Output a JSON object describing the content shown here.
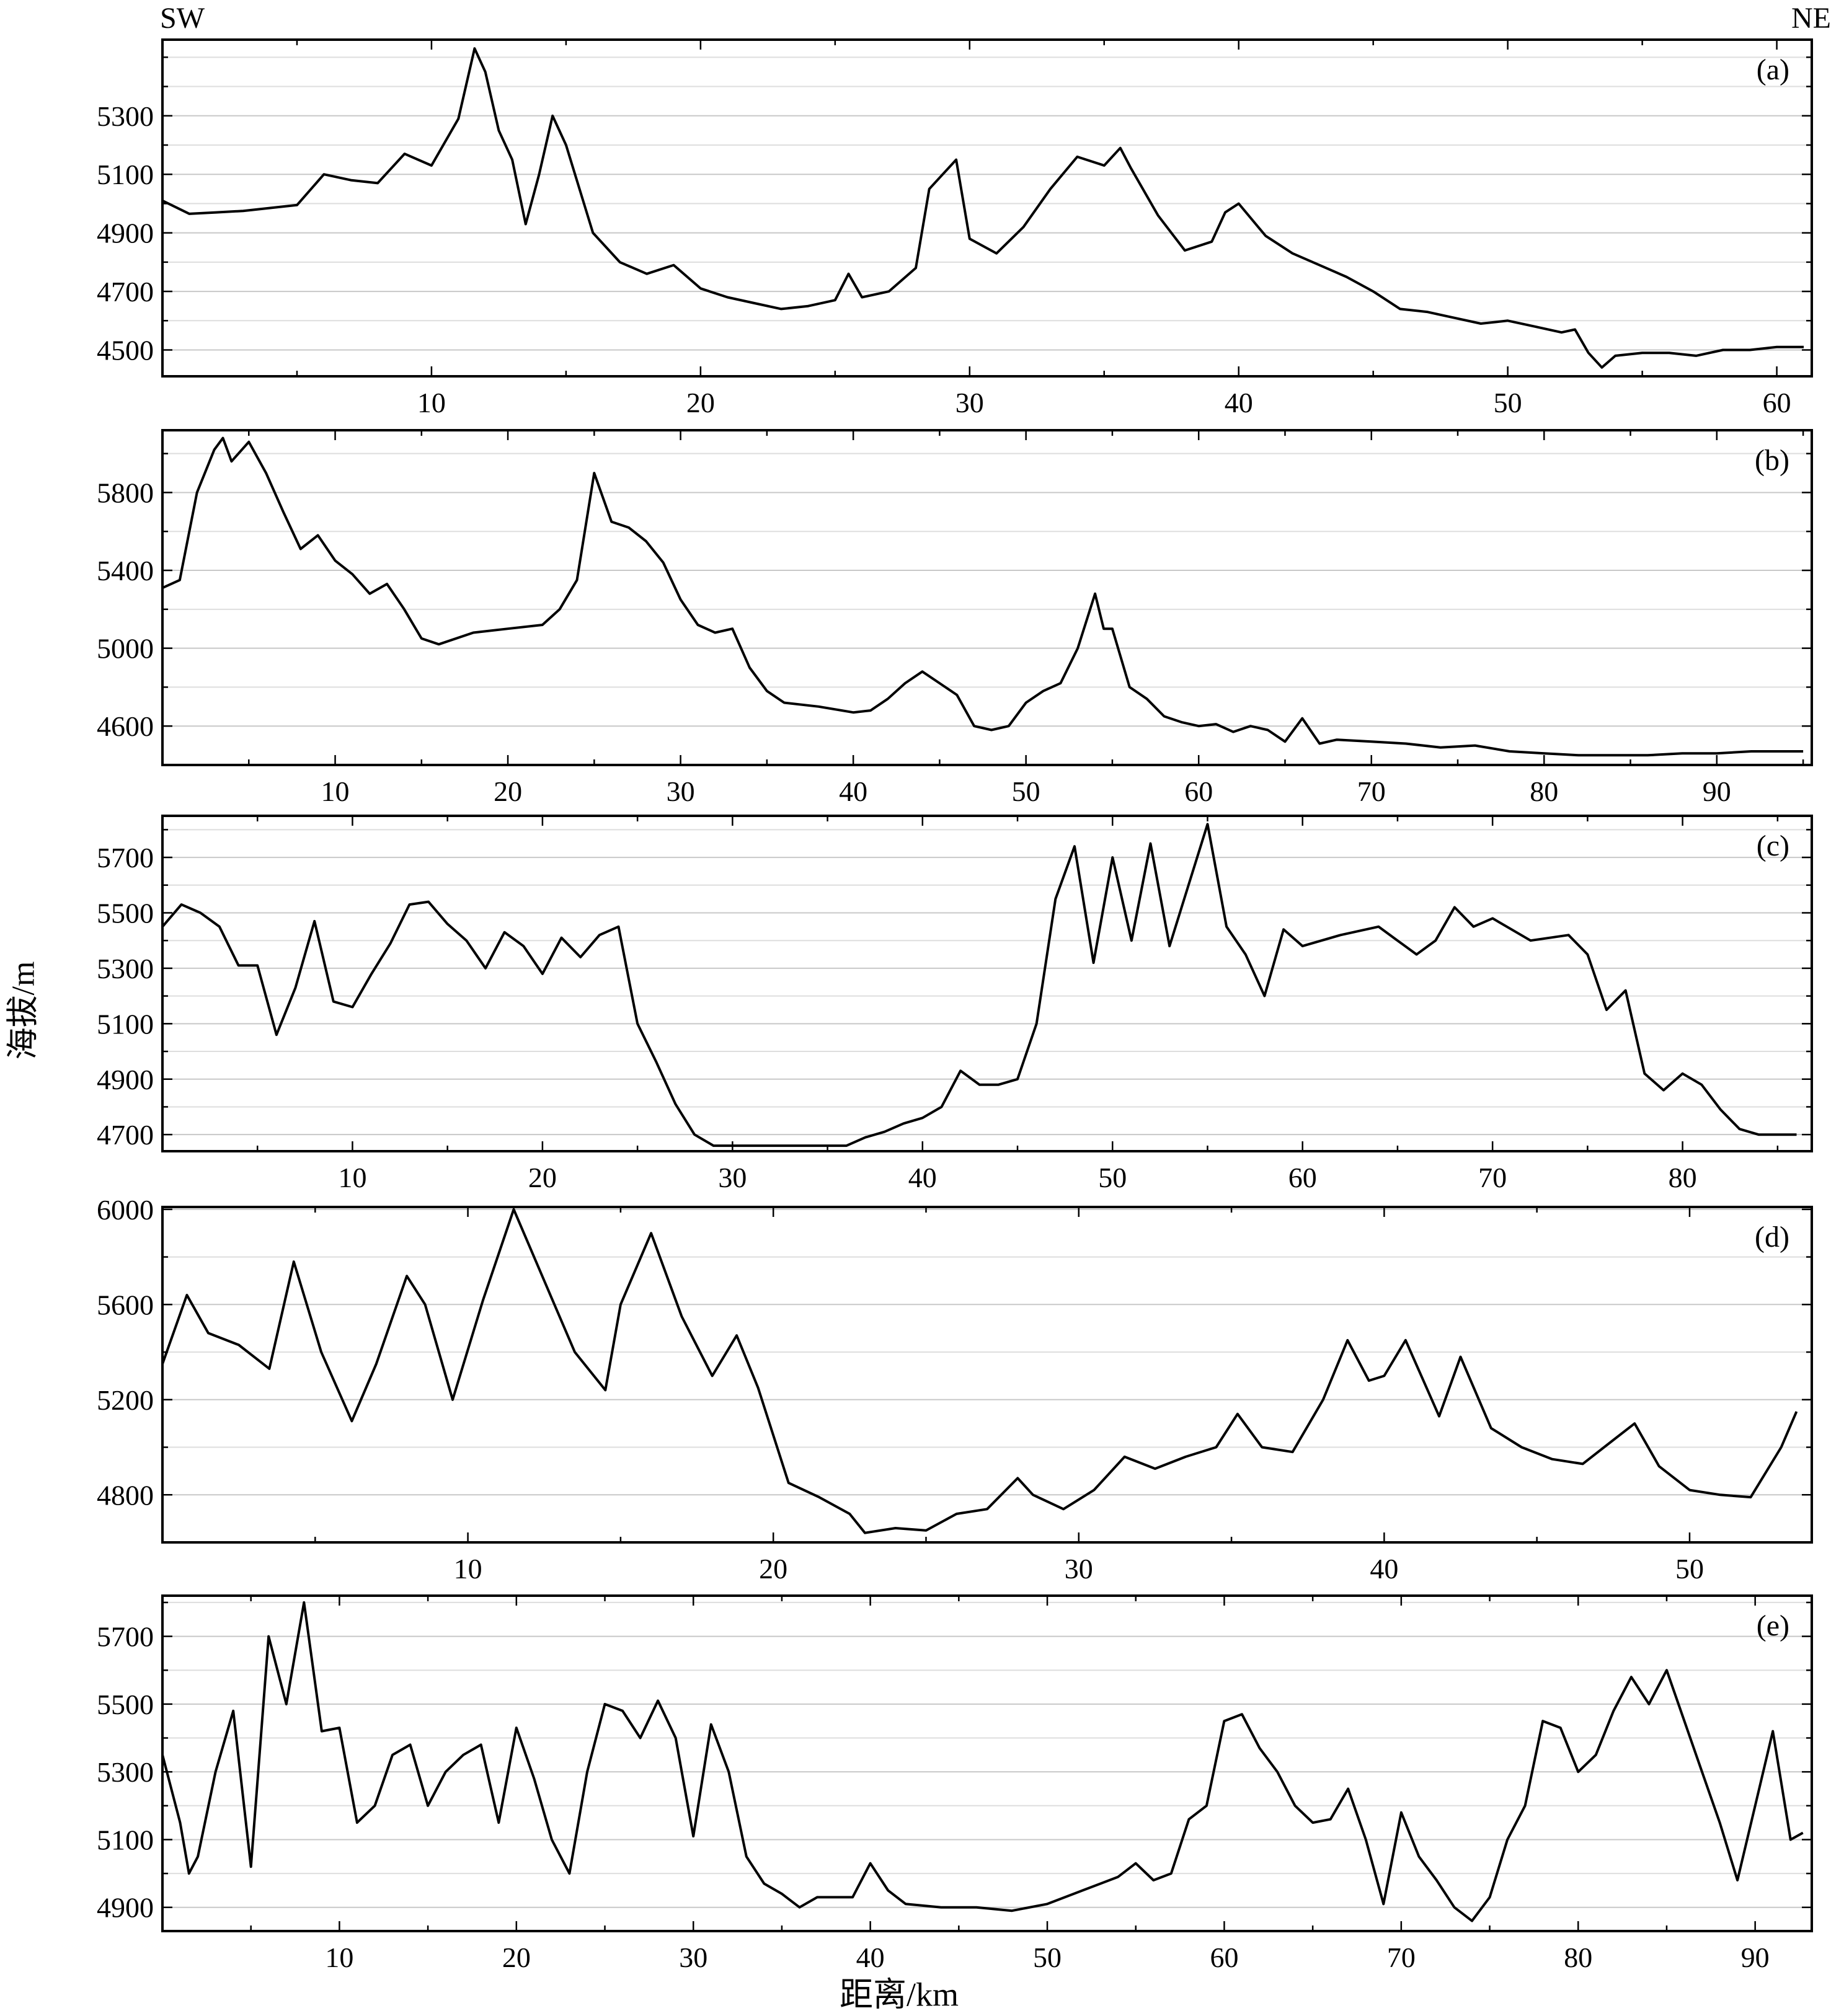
{
  "direction": {
    "left": "SW",
    "right": "NE"
  },
  "ylabel": "海拔/m",
  "xlabel": "距离/km",
  "chart_data": [
    {
      "type": "line",
      "panel_label": "(a)",
      "xlim": [
        0,
        61.3
      ],
      "ylim": [
        4410,
        5560
      ],
      "xticks": [
        10,
        20,
        30,
        40,
        50,
        60
      ],
      "yticks": [
        4500,
        4700,
        4900,
        5100,
        5300
      ],
      "grid": "horizontal",
      "x": [
        0,
        1,
        2,
        3,
        4,
        5,
        6,
        7,
        8,
        9,
        10,
        11,
        11.6,
        12,
        12.5,
        13,
        13.5,
        14,
        14.5,
        15,
        16,
        17,
        18,
        19,
        20,
        21,
        22,
        23,
        24,
        25,
        25.5,
        26,
        27,
        28,
        28.5,
        29,
        29.5,
        30,
        31,
        32,
        33,
        34,
        35,
        35.6,
        36,
        37,
        38,
        39,
        39.5,
        40,
        41,
        42,
        43,
        44,
        45,
        46,
        47,
        48,
        49,
        50,
        51,
        52,
        52.5,
        53,
        53.5,
        54,
        55,
        56,
        57,
        58,
        59,
        60,
        61
      ],
      "values": [
        5010,
        4965,
        4970,
        4975,
        4985,
        4995,
        5100,
        5080,
        5070,
        5170,
        5130,
        5290,
        5530,
        5450,
        5250,
        5150,
        4930,
        5100,
        5300,
        5200,
        4900,
        4800,
        4760,
        4790,
        4710,
        4680,
        4660,
        4640,
        4650,
        4670,
        4760,
        4680,
        4700,
        4780,
        5050,
        5100,
        5150,
        4880,
        4830,
        4920,
        5050,
        5160,
        5130,
        5190,
        5120,
        4960,
        4840,
        4870,
        4970,
        5000,
        4890,
        4830,
        4790,
        4750,
        4700,
        4640,
        4630,
        4610,
        4590,
        4600,
        4580,
        4560,
        4570,
        4490,
        4440,
        4480,
        4490,
        4490,
        4480,
        4500,
        4500,
        4510,
        4510
      ]
    },
    {
      "type": "line",
      "panel_label": "(b)",
      "xlim": [
        0,
        95.5
      ],
      "ylim": [
        4400,
        6120
      ],
      "xticks": [
        10,
        20,
        30,
        40,
        50,
        60,
        70,
        80,
        90
      ],
      "yticks": [
        4600,
        5000,
        5400,
        5800
      ],
      "grid": "horizontal",
      "x": [
        0,
        1,
        2,
        3,
        3.5,
        4,
        5,
        6,
        7,
        8,
        9,
        10,
        11,
        12,
        13,
        14,
        15,
        16,
        18,
        20,
        22,
        23,
        24,
        25,
        26,
        27,
        28,
        29,
        30,
        31,
        32,
        33,
        34,
        35,
        36,
        38,
        40,
        41,
        42,
        43,
        44,
        45,
        46,
        47,
        48,
        49,
        50,
        51,
        52,
        53,
        54,
        54.5,
        55,
        56,
        57,
        58,
        59,
        60,
        61,
        62,
        63,
        64,
        65,
        66,
        67,
        68,
        70,
        72,
        74,
        76,
        78,
        80,
        82,
        84,
        86,
        88,
        90,
        92,
        94,
        95
      ],
      "values": [
        5310,
        5350,
        5800,
        6020,
        6080,
        5960,
        6060,
        5900,
        5700,
        5510,
        5580,
        5450,
        5380,
        5280,
        5330,
        5200,
        5050,
        5020,
        5080,
        5100,
        5120,
        5200,
        5350,
        5900,
        5650,
        5620,
        5550,
        5440,
        5250,
        5120,
        5080,
        5100,
        4900,
        4780,
        4720,
        4700,
        4670,
        4680,
        4740,
        4820,
        4880,
        4820,
        4760,
        4600,
        4580,
        4600,
        4720,
        4780,
        4820,
        5000,
        5280,
        5100,
        5100,
        4800,
        4740,
        4650,
        4620,
        4600,
        4610,
        4570,
        4600,
        4580,
        4520,
        4640,
        4510,
        4530,
        4520,
        4510,
        4490,
        4500,
        4470,
        4460,
        4450,
        4450,
        4450,
        4460,
        4460,
        4470,
        4470,
        4470
      ]
    },
    {
      "type": "line",
      "panel_label": "(c)",
      "xlim": [
        0,
        86.8
      ],
      "ylim": [
        4640,
        5850
      ],
      "xticks": [
        10,
        20,
        30,
        40,
        50,
        60,
        70,
        80
      ],
      "yticks": [
        4700,
        4900,
        5100,
        5300,
        5500,
        5700
      ],
      "grid": "horizontal",
      "x": [
        0,
        1,
        2,
        3,
        4,
        5,
        6,
        7,
        8,
        9,
        10,
        11,
        12,
        13,
        14,
        15,
        16,
        17,
        18,
        19,
        20,
        21,
        22,
        23,
        24,
        25,
        26,
        27,
        28,
        29,
        30,
        32,
        34,
        36,
        37,
        38,
        39,
        40,
        41,
        42,
        43,
        44,
        45,
        46,
        47,
        48,
        49,
        50,
        51,
        52,
        53,
        54,
        55,
        56,
        57,
        58,
        59,
        60,
        62,
        64,
        65,
        66,
        67,
        68,
        69,
        70,
        72,
        74,
        75,
        76,
        77,
        78,
        79,
        80,
        81,
        82,
        83,
        84,
        85,
        86
      ],
      "values": [
        5450,
        5530,
        5500,
        5450,
        5310,
        5310,
        5060,
        5230,
        5470,
        5180,
        5160,
        5280,
        5390,
        5530,
        5540,
        5460,
        5400,
        5300,
        5430,
        5380,
        5280,
        5410,
        5340,
        5420,
        5450,
        5100,
        4960,
        4810,
        4700,
        4660,
        4660,
        4660,
        4660,
        4660,
        4690,
        4710,
        4740,
        4760,
        4800,
        4930,
        4880,
        4880,
        4900,
        5100,
        5550,
        5740,
        5320,
        5700,
        5400,
        5750,
        5380,
        5600,
        5820,
        5450,
        5350,
        5200,
        5440,
        5380,
        5420,
        5450,
        5400,
        5350,
        5400,
        5520,
        5450,
        5480,
        5400,
        5420,
        5350,
        5150,
        5220,
        4920,
        4860,
        4920,
        4880,
        4790,
        4720,
        4700,
        4700,
        4700
      ]
    },
    {
      "type": "line",
      "panel_label": "(d)",
      "xlim": [
        0,
        54
      ],
      "ylim": [
        4600,
        6010
      ],
      "xticks": [
        10,
        20,
        30,
        40,
        50
      ],
      "yticks": [
        4800,
        5200,
        5600,
        6000
      ],
      "grid": "horizontal",
      "x": [
        0,
        0.8,
        1.5,
        2.5,
        3.5,
        4.3,
        5.2,
        6.2,
        7,
        8,
        8.6,
        9.5,
        10.5,
        11.5,
        12.5,
        13.5,
        14.5,
        15,
        16,
        17,
        18,
        18.8,
        19.5,
        20.5,
        21.5,
        22.5,
        23,
        24,
        25,
        26,
        27,
        28,
        28.5,
        29.5,
        30.5,
        31.5,
        32.5,
        33.5,
        34.5,
        35.2,
        36,
        37,
        38,
        38.8,
        39.5,
        40,
        40.7,
        41.8,
        42.5,
        43.5,
        44.5,
        45.5,
        46.5,
        47.5,
        48.2,
        49,
        50,
        51,
        52,
        53,
        53.5
      ],
      "values": [
        5350,
        5640,
        5480,
        5430,
        5330,
        5780,
        5400,
        5110,
        5350,
        5720,
        5600,
        5200,
        5620,
        6000,
        5700,
        5400,
        5240,
        5600,
        5900,
        5550,
        5300,
        5470,
        5250,
        4850,
        4790,
        4720,
        4640,
        4660,
        4650,
        4720,
        4740,
        4870,
        4800,
        4740,
        4820,
        4960,
        4910,
        4960,
        5000,
        5140,
        5000,
        4980,
        5200,
        5450,
        5280,
        5300,
        5450,
        5130,
        5380,
        5080,
        5000,
        4950,
        4930,
        5030,
        5100,
        4920,
        4820,
        4800,
        4790,
        5000,
        5150
      ]
    },
    {
      "type": "line",
      "panel_label": "(e)",
      "xlim": [
        0,
        93.2
      ],
      "ylim": [
        4830,
        5820
      ],
      "xticks": [
        10,
        20,
        30,
        40,
        50,
        60,
        70,
        80,
        90
      ],
      "yticks": [
        4900,
        5100,
        5300,
        5500,
        5700
      ],
      "grid": "horizontal",
      "x": [
        0,
        1,
        1.5,
        2,
        3,
        4,
        5,
        6,
        7,
        8,
        9,
        10,
        11,
        12,
        13,
        14,
        15,
        16,
        17,
        18,
        19,
        20,
        21,
        22,
        23,
        24,
        25,
        26,
        27,
        28,
        29,
        30,
        31,
        32,
        33,
        34,
        35,
        36,
        37,
        38,
        39,
        40,
        41,
        42,
        44,
        46,
        48,
        50,
        52,
        54,
        55,
        56,
        57,
        58,
        59,
        60,
        61,
        62,
        63,
        64,
        65,
        66,
        67,
        68,
        69,
        70,
        71,
        72,
        73,
        74,
        75,
        76,
        77,
        78,
        79,
        80,
        81,
        82,
        83,
        84,
        85,
        86,
        87,
        88,
        89,
        90,
        91,
        92,
        92.7
      ],
      "values": [
        5350,
        5150,
        5000,
        5050,
        5300,
        5480,
        5020,
        5700,
        5500,
        5800,
        5420,
        5430,
        5150,
        5200,
        5350,
        5380,
        5200,
        5300,
        5350,
        5380,
        5150,
        5430,
        5280,
        5100,
        5000,
        5300,
        5500,
        5480,
        5400,
        5510,
        5400,
        5110,
        5440,
        5300,
        5050,
        4970,
        4940,
        4900,
        4930,
        4930,
        4930,
        5030,
        4950,
        4910,
        4900,
        4900,
        4890,
        4910,
        4950,
        4990,
        5030,
        4980,
        5000,
        5160,
        5200,
        5450,
        5470,
        5370,
        5300,
        5200,
        5150,
        5160,
        5250,
        5100,
        4910,
        5180,
        5050,
        4980,
        4900,
        4860,
        4930,
        5100,
        5200,
        5450,
        5430,
        5300,
        5350,
        5480,
        5580,
        5500,
        5600,
        5450,
        5300,
        5150,
        4980,
        5200,
        5420,
        5100,
        5120
      ]
    }
  ]
}
